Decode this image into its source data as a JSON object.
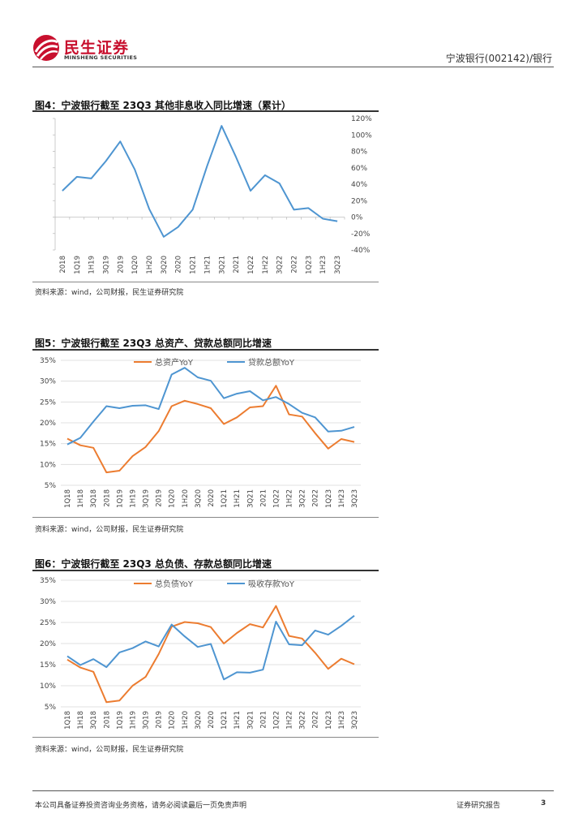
{
  "header": {
    "logo_cn": "民生证券",
    "logo_en": "MINSHENG SECURITIES",
    "doc_title": "宁波银行(002142)/银行"
  },
  "colors": {
    "blue": "#4e95d1",
    "orange": "#ec7c30",
    "brand_red": "#c8102e"
  },
  "figures": [
    {
      "title": "图4：宁波银行截至 23Q3 其他非息收入同比增速（累计）",
      "source": "资料来源：wind，公司财报，民生证券研究院"
    },
    {
      "title": "图5：宁波银行截至 23Q3 总资产、贷款总额同比增速",
      "source": "资料来源：wind，公司财报，民生证券研究院"
    },
    {
      "title": "图6：宁波银行截至 23Q3 总负债、存款总额同比增速",
      "source": "资料来源：wind，公司财报，民生证券研究院"
    }
  ],
  "chart_data": [
    {
      "type": "line",
      "title": "宁波银行截至 23Q3 其他非息收入同比增速（累计）",
      "categories": [
        "2018",
        "1Q19",
        "1H19",
        "3Q19",
        "2019",
        "1Q20",
        "1H20",
        "3Q20",
        "2020",
        "1Q21",
        "1H21",
        "3Q21",
        "2021",
        "1Q22",
        "1H22",
        "3Q22",
        "2022",
        "1Q23",
        "1H23",
        "3Q23"
      ],
      "series": [
        {
          "name": "其他非息收入同比增速",
          "color": "#4e95d1",
          "values": [
            32,
            49,
            47,
            68,
            92,
            58,
            10,
            -24,
            -12,
            9,
            62,
            111,
            73,
            32,
            51,
            41,
            9,
            11,
            -2,
            -5
          ]
        }
      ],
      "y_axis": "right",
      "ylim": [
        -40,
        120
      ],
      "yticks": [
        -40,
        -20,
        0,
        20,
        40,
        60,
        80,
        100,
        120
      ],
      "ytick_labels": [
        "-40%",
        "-20%",
        "0%",
        "20%",
        "40%",
        "60%",
        "80%",
        "100%",
        "120%"
      ]
    },
    {
      "type": "line",
      "title": "宁波银行截至 23Q3 总资产、贷款总额同比增速",
      "categories": [
        "1Q18",
        "1H18",
        "3Q18",
        "2018",
        "1Q19",
        "1H19",
        "3Q19",
        "2019",
        "1Q20",
        "1H20",
        "3Q20",
        "2020",
        "1Q21",
        "1H21",
        "3Q21",
        "2021",
        "1Q22",
        "1H22",
        "3Q22",
        "2022",
        "1Q23",
        "1H23",
        "3Q23"
      ],
      "series": [
        {
          "name": "总资产YoY",
          "color": "#ec7c30",
          "values": [
            16.2,
            14.6,
            14.0,
            8.1,
            8.5,
            12.0,
            14.2,
            18.0,
            24.0,
            25.3,
            24.5,
            23.5,
            19.7,
            21.3,
            23.7,
            24.0,
            28.9,
            22.0,
            21.5,
            17.5,
            13.8,
            16.1,
            15.4
          ]
        },
        {
          "name": "贷款总额YoY",
          "color": "#4e95d1",
          "values": [
            14.8,
            16.4,
            20.3,
            24.0,
            23.5,
            24.1,
            24.2,
            23.3,
            31.6,
            33.2,
            30.9,
            30.1,
            25.9,
            27.0,
            27.6,
            25.4,
            26.2,
            24.5,
            22.4,
            21.3,
            17.9,
            18.1,
            19.0
          ]
        }
      ],
      "y_axis": "left",
      "ylim": [
        5,
        35
      ],
      "yticks": [
        5,
        10,
        15,
        20,
        25,
        30,
        35
      ],
      "ytick_labels": [
        "5%",
        "10%",
        "15%",
        "20%",
        "25%",
        "30%",
        "35%"
      ],
      "legend": "top"
    },
    {
      "type": "line",
      "title": "宁波银行截至 23Q3 总负债、存款总额同比增速",
      "categories": [
        "1Q18",
        "1H18",
        "3Q18",
        "2018",
        "1Q19",
        "1H19",
        "3Q19",
        "2019",
        "1Q20",
        "1H20",
        "3Q20",
        "2020",
        "1Q21",
        "1H21",
        "3Q21",
        "2021",
        "1Q22",
        "1H22",
        "3Q22",
        "2022",
        "1Q23",
        "1H23",
        "3Q23"
      ],
      "series": [
        {
          "name": "总负债YoY",
          "color": "#ec7c30",
          "values": [
            16.2,
            14.3,
            13.3,
            6.1,
            6.5,
            10.0,
            12.1,
            17.5,
            24.0,
            25.1,
            24.8,
            23.9,
            20.0,
            22.5,
            24.6,
            23.8,
            28.9,
            21.8,
            21.2,
            17.8,
            14.0,
            16.4,
            15.1
          ]
        },
        {
          "name": "吸收存款YoY",
          "color": "#4e95d1",
          "values": [
            17.0,
            14.9,
            16.3,
            14.4,
            17.9,
            18.9,
            20.5,
            19.3,
            24.5,
            21.7,
            19.2,
            19.9,
            11.5,
            13.2,
            13.1,
            13.8,
            25.2,
            19.8,
            19.6,
            23.1,
            22.1,
            24.2,
            26.6
          ]
        }
      ],
      "y_axis": "left",
      "ylim": [
        5,
        35
      ],
      "yticks": [
        5,
        10,
        15,
        20,
        25,
        30,
        35
      ],
      "ytick_labels": [
        "5%",
        "10%",
        "15%",
        "20%",
        "25%",
        "30%",
        "35%"
      ],
      "legend": "top"
    }
  ],
  "footer": {
    "disclaimer": "本公司具备证券投资咨询业务资格，请务必阅读最后一页免责声明",
    "report_type": "证券研究报告",
    "page_number": "3"
  }
}
